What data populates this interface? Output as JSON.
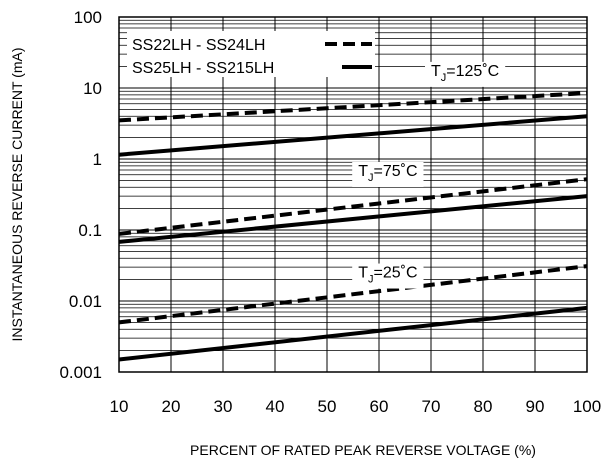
{
  "chart_data": {
    "type": "line",
    "title": "",
    "xlabel": "PERCENT OF RATED PEAK REVERSE VOLTAGE (%)",
    "ylabel": "INSTANTANEOUS REVERSE CURRENT (mA)",
    "xlim": [
      10,
      100
    ],
    "ylim": [
      0.001,
      100
    ],
    "yscale": "log",
    "grid": true,
    "x_ticks": [
      "10",
      "20",
      "30",
      "40",
      "50",
      "60",
      "70",
      "80",
      "90",
      "100"
    ],
    "y_ticks": [
      "0.001",
      "0.01",
      "0.1",
      "1",
      "10",
      "100"
    ],
    "legend": {
      "placement": "top-left",
      "entries": [
        {
          "label": "SS22LH - SS24LH",
          "style": "dashed"
        },
        {
          "label": "SS25LH - SS215LH",
          "style": "solid"
        }
      ]
    },
    "annotations": [
      {
        "text": "T",
        "sub": "J",
        "suffix": "=125˚C",
        "x": 70,
        "y": 18
      },
      {
        "text": "T",
        "sub": "J",
        "suffix": "=75˚C",
        "x": 56,
        "y": 0.7
      },
      {
        "text": "T",
        "sub": "J",
        "suffix": "=25˚C",
        "x": 56,
        "y": 0.026
      }
    ],
    "series": [
      {
        "style": "dashed",
        "group": "125",
        "x": [
          10,
          100
        ],
        "y": [
          3.5,
          8.5
        ]
      },
      {
        "style": "solid",
        "group": "125",
        "x": [
          10,
          100
        ],
        "y": [
          1.15,
          4.0
        ]
      },
      {
        "style": "dashed",
        "group": "75",
        "x": [
          10,
          100
        ],
        "y": [
          0.088,
          0.52
        ]
      },
      {
        "style": "solid",
        "group": "75",
        "x": [
          10,
          100
        ],
        "y": [
          0.068,
          0.3
        ]
      },
      {
        "style": "dashed",
        "group": "25",
        "x": [
          10,
          100
        ],
        "y": [
          0.005,
          0.031
        ]
      },
      {
        "style": "solid",
        "group": "25",
        "x": [
          10,
          100
        ],
        "y": [
          0.0015,
          0.008
        ]
      }
    ]
  }
}
